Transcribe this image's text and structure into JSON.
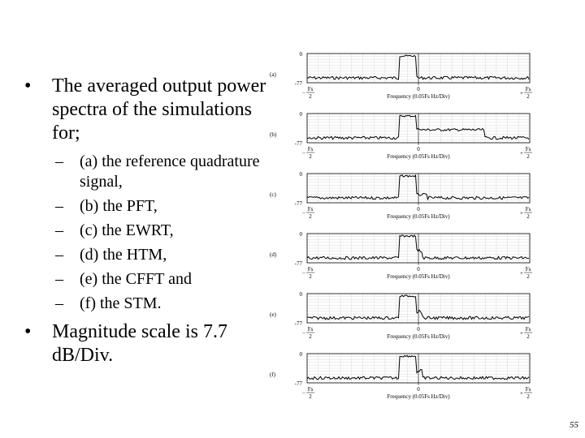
{
  "bullets": {
    "intro": "The averaged output power spectra of the simulations for;",
    "items": [
      "(a) the reference quadrature signal,",
      "(b) the PFT,",
      "(c) the EWRT,",
      "(d) the HTM,",
      "(e) the CFFT and",
      "(f) the STM."
    ],
    "scale": "Magnitude scale is 7.7 dB/Div."
  },
  "figure": {
    "y_top_label": "0",
    "y_bottom_label": "-77",
    "x_left_num": "Fs",
    "x_left_den": "2",
    "x_left_sign": "−",
    "x_right_num": "Fs",
    "x_right_den": "2",
    "x_right_sign": "+",
    "x_center_label": "0",
    "x_axis_label": "Frequency (0.05Fs Hz/Div)",
    "panels": [
      {
        "label": "(a)"
      },
      {
        "label": "(b)"
      },
      {
        "label": "(c)"
      },
      {
        "label": "(d)"
      },
      {
        "label": "(e)"
      },
      {
        "label": "(f)"
      }
    ]
  },
  "page_number": "55"
}
